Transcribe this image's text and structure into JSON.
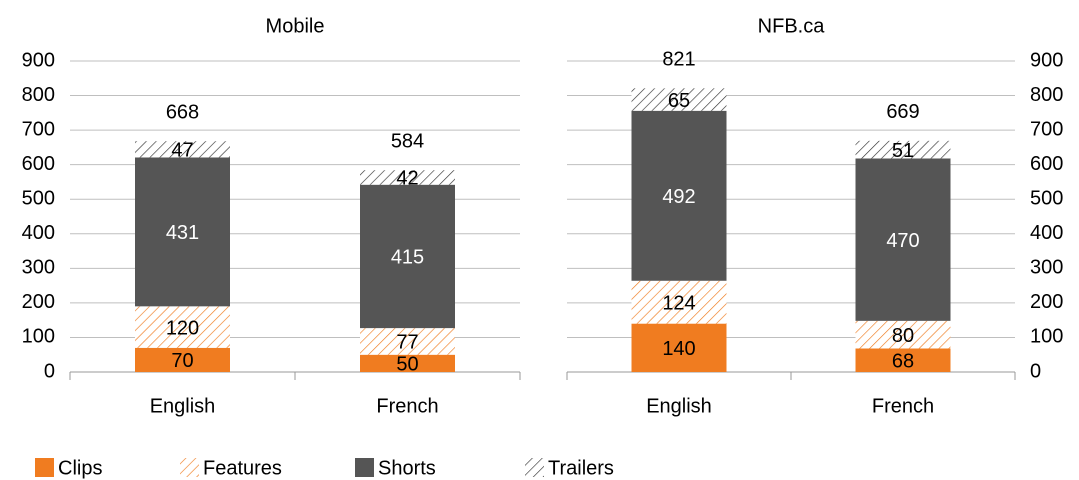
{
  "chart_data": [
    {
      "type": "bar",
      "stacked": true,
      "title": "Mobile",
      "y_axis_side": "left",
      "grid": true,
      "categories": [
        "English",
        "French"
      ],
      "series": [
        {
          "name": "Clips",
          "color": "#f07c20",
          "hatch": false,
          "values": [
            70,
            50
          ]
        },
        {
          "name": "Features",
          "color": "#f07c20",
          "hatch": true,
          "values": [
            120,
            77
          ]
        },
        {
          "name": "Shorts",
          "color": "#555555",
          "hatch": false,
          "values": [
            431,
            415
          ]
        },
        {
          "name": "Trailers",
          "color": "#333333",
          "hatch": true,
          "values": [
            47,
            42
          ]
        }
      ],
      "totals": [
        668,
        584
      ],
      "ylim": [
        0,
        900
      ],
      "yticks": [
        0,
        100,
        200,
        300,
        400,
        500,
        600,
        700,
        800,
        900
      ]
    },
    {
      "type": "bar",
      "stacked": true,
      "title": "NFB.ca",
      "y_axis_side": "right",
      "grid": true,
      "categories": [
        "English",
        "French"
      ],
      "series": [
        {
          "color": "#f07c20",
          "hatch": false,
          "values": [
            140,
            68
          ]
        },
        {
          "color": "#f07c20",
          "hatch": true,
          "values": [
            124,
            80
          ]
        },
        {
          "color": "#555555",
          "hatch": false,
          "values": [
            492,
            470
          ]
        },
        {
          "color": "#333333",
          "hatch": true,
          "values": [
            65,
            51
          ]
        }
      ],
      "totals": [
        821,
        669
      ],
      "ylim": [
        0,
        900
      ],
      "yticks": [
        0,
        100,
        200,
        300,
        400,
        500,
        600,
        700,
        800,
        900
      ]
    }
  ]
}
